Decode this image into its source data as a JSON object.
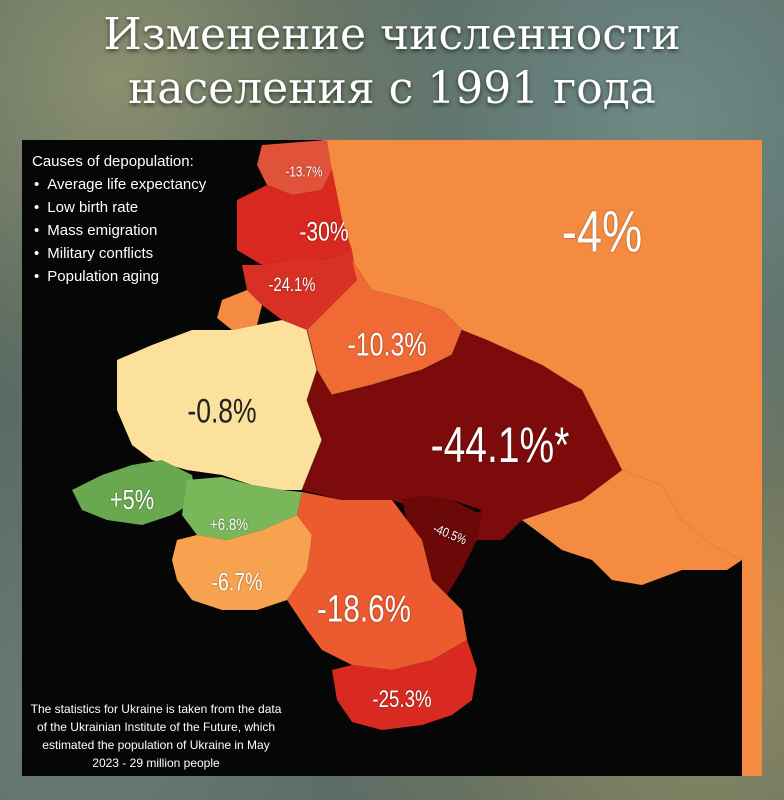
{
  "title": {
    "line1": "Изменение численности",
    "line2": "населения с 1991 года"
  },
  "legend": {
    "heading": "Causes of depopulation:",
    "items": [
      "Average life expectancy",
      "Low birth rate",
      "Mass emigration",
      "Military conflicts",
      "Population aging"
    ]
  },
  "regions": [
    {
      "id": "estonia",
      "value": "-13.7%",
      "color": "#e0533a"
    },
    {
      "id": "latvia",
      "value": "-30%",
      "color": "#d8281f"
    },
    {
      "id": "lithuania",
      "value": "-24.1%",
      "color": "#d93026"
    },
    {
      "id": "russia",
      "value": "-4%",
      "color": "#f58b41"
    },
    {
      "id": "belarus",
      "value": "-10.3%",
      "color": "#ef6a35"
    },
    {
      "id": "poland",
      "value": "-0.8%",
      "color": "#fbe19b"
    },
    {
      "id": "ukraine",
      "value": "-44.1%*",
      "color": "#7e0b0b"
    },
    {
      "id": "moldova",
      "value": "-40.5%",
      "color": "#6b0808"
    },
    {
      "id": "czechia",
      "value": "+5%",
      "color": "#6aa84f"
    },
    {
      "id": "slovakia",
      "value": "+6.8%",
      "color": "#79b75a"
    },
    {
      "id": "hungary",
      "value": "-6.7%",
      "color": "#f7a24f"
    },
    {
      "id": "romania",
      "value": "-18.6%",
      "color": "#ec5a2f"
    },
    {
      "id": "bulgaria",
      "value": "-25.3%",
      "color": "#d92a22"
    }
  ],
  "note": {
    "line1": "The statistics for Ukraine is taken from the data",
    "line2": "of the Ukrainian Institute of the Future, which",
    "line3": "estimated the population of Ukraine in May",
    "line4": "2023 - 29 million people"
  }
}
